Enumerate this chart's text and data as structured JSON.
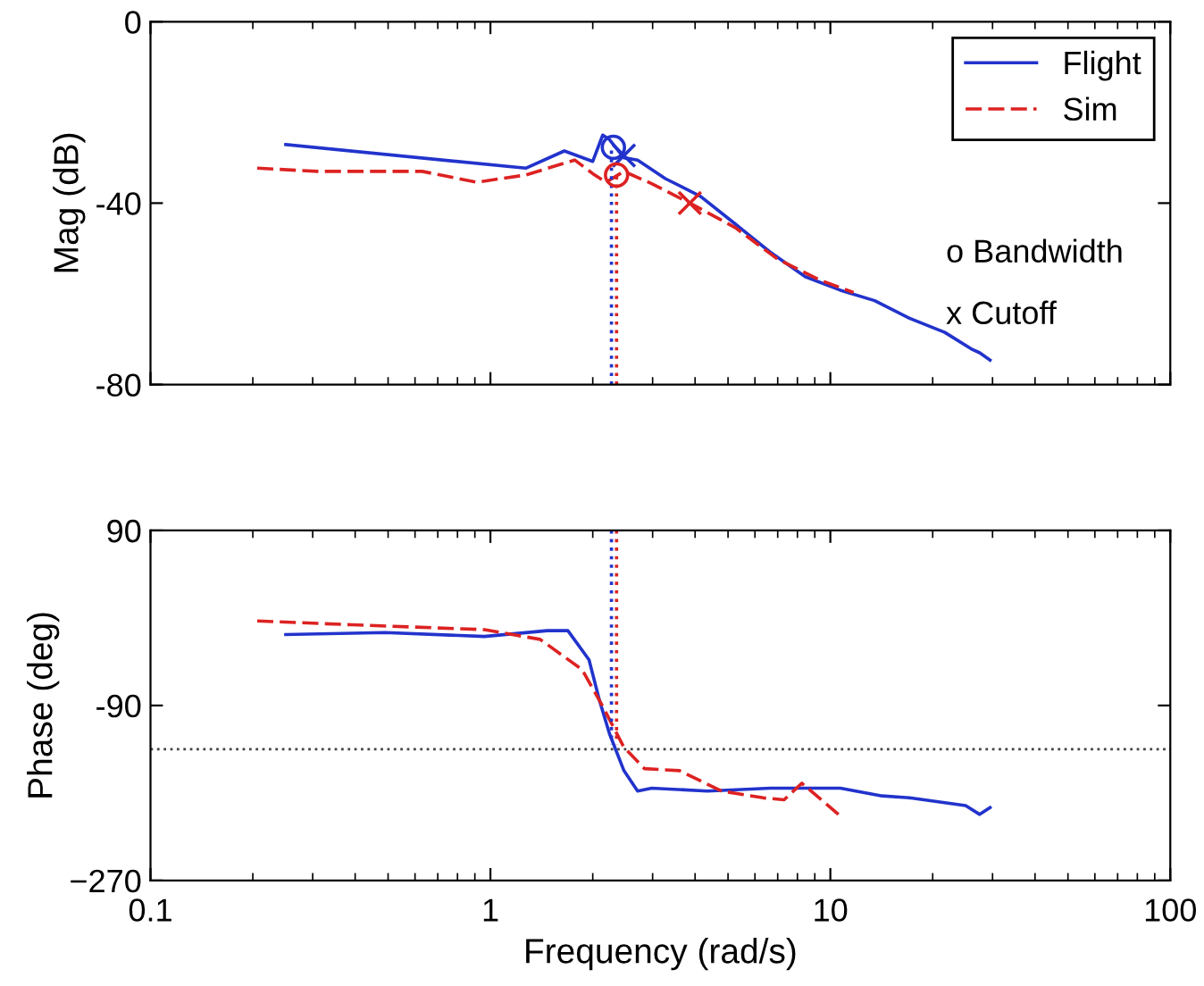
{
  "chart_data": [
    {
      "type": "line",
      "ylabel": "Mag (dB)",
      "log": "x",
      "xlim": [
        0.1,
        100
      ],
      "xticks": [
        0.1,
        1,
        10,
        100
      ],
      "ylim": [
        -80,
        0
      ],
      "yticks": [
        0,
        -40,
        -80
      ],
      "tick_labels": "y",
      "legend": "top right",
      "annotations": [
        "o Bandwidth",
        "x Cutoff"
      ],
      "series": [
        {
          "name": "Flight",
          "color": "#2233cc",
          "line_style": "solid",
          "x": [
            0.25,
            1.27,
            1.65,
            2.0,
            2.14,
            2.24,
            2.47,
            2.71,
            3.27,
            4.15,
            5.25,
            6.65,
            8.43,
            10.7,
            13.5,
            17.1,
            21.7,
            26.2,
            27.5,
            29.5
          ],
          "values": [
            -27.1,
            -32.3,
            -28.5,
            -30.8,
            -25,
            -26,
            -30,
            -30.5,
            -34.6,
            -38.5,
            -44.6,
            -50.8,
            -56.2,
            -59.2,
            -61.5,
            -65.4,
            -68.5,
            -72.3,
            -73,
            -74.6
          ]
        },
        {
          "name": "Sim",
          "color": "#dd2222",
          "line_style": "dashed",
          "x": [
            0.206,
            0.31,
            0.63,
            0.91,
            1.27,
            1.77,
            2.0,
            2.19,
            2.47,
            2.98,
            3.86,
            5.25,
            6.98,
            9.27,
            11.7
          ],
          "values": [
            -32.3,
            -33,
            -33,
            -35.4,
            -33.8,
            -30.5,
            -33.5,
            -35.4,
            -33,
            -35.7,
            -40,
            -45.4,
            -52.3,
            -56.9,
            -59.7
          ]
        },
        {
          "type": "line",
          "color": "#2233cc",
          "line_style": "dotted",
          "x": [
            2.27,
            2.27
          ],
          "values": [
            -80,
            -28
          ]
        },
        {
          "type": "line",
          "color": "#dd2222",
          "line_style": "dotted",
          "x": [
            2.35,
            2.35
          ],
          "values": [
            -80,
            -34
          ]
        },
        {
          "type": "scatter",
          "color": "#2233cc",
          "marker": "circle",
          "x": [
            2.3
          ],
          "values": [
            -27.7
          ]
        },
        {
          "type": "scatter",
          "color": "#2233cc",
          "marker": "cross",
          "x": [
            2.47
          ],
          "values": [
            -29.5
          ]
        },
        {
          "type": "scatter",
          "color": "#dd2222",
          "marker": "circle",
          "x": [
            2.35
          ],
          "values": [
            -33.8
          ]
        },
        {
          "type": "scatter",
          "color": "#dd2222",
          "marker": "cross",
          "x": [
            3.86
          ],
          "values": [
            -40
          ]
        }
      ]
    },
    {
      "type": "line",
      "xlabel": "Frequency (rad/s)",
      "ylabel": "Phase (deg)",
      "log": "x",
      "xlim": [
        0.1,
        100
      ],
      "xticks": [
        0.1,
        1,
        10,
        100
      ],
      "ylim": [
        -270,
        90
      ],
      "yticks": [
        90,
        -90,
        {
          "value": -270,
          "label": "−270"
        }
      ],
      "ref_lines": [
        {
          "axis": "y",
          "value": -135,
          "color": "#444444",
          "line_style": "dotted"
        }
      ],
      "series": [
        {
          "color": "#2233cc",
          "line_style": "solid",
          "x": [
            0.25,
            0.49,
            0.96,
            1.47,
            1.69,
            1.95,
            2.09,
            2.24,
            2.47,
            2.71,
            2.98,
            4.35,
            6.65,
            10.7,
            14.2,
            17.1,
            21.7,
            25,
            27.5,
            29.5
          ],
          "values": [
            -17,
            -15,
            -19,
            -13,
            -13,
            -43,
            -84,
            -119,
            -157,
            -178,
            -175,
            -178,
            -175,
            -175,
            -183,
            -185,
            -190,
            -193,
            -202,
            -195
          ]
        },
        {
          "color": "#dd2222",
          "line_style": "dashed",
          "x": [
            0.206,
            0.39,
            0.96,
            1.4,
            1.86,
            2.14,
            2.47,
            2.84,
            3.6,
            4.78,
            6.35,
            7.31,
            8.24,
            9.27,
            10.9
          ],
          "values": [
            -3,
            -7,
            -12,
            -22,
            -53,
            -91,
            -133,
            -155,
            -157,
            -178,
            -185,
            -187,
            -170,
            -185,
            -206
          ]
        },
        {
          "color": "#2233cc",
          "line_style": "dotted",
          "x": [
            2.27,
            2.27
          ],
          "values": [
            90,
            -130
          ]
        },
        {
          "color": "#dd2222",
          "line_style": "dotted",
          "x": [
            2.35,
            2.35
          ],
          "values": [
            90,
            -130
          ]
        }
      ]
    }
  ]
}
